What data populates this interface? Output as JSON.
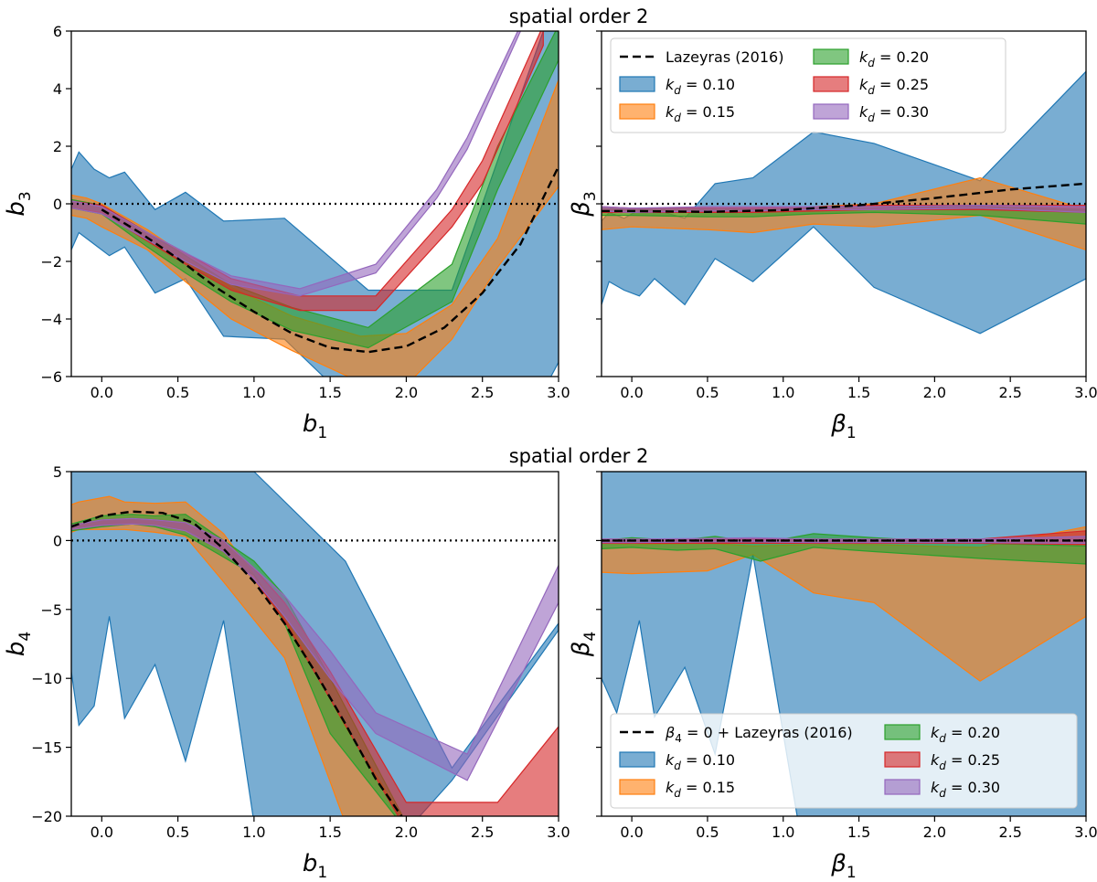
{
  "figure": {
    "top_title": "spatial order 2",
    "bottom_title": "spatial order 2"
  },
  "series_styles": [
    {
      "key": "0.10",
      "color": "#1f77b4",
      "alpha": 0.6,
      "label_pre": "k",
      "label_sub": "d",
      "label_post": " = 0.10"
    },
    {
      "key": "0.15",
      "color": "#ff7f0e",
      "alpha": 0.6,
      "label_pre": "k",
      "label_sub": "d",
      "label_post": " = 0.15"
    },
    {
      "key": "0.20",
      "color": "#2ca02c",
      "alpha": 0.6,
      "label_pre": "k",
      "label_sub": "d",
      "label_post": " = 0.20"
    },
    {
      "key": "0.25",
      "color": "#d62728",
      "alpha": 0.6,
      "label_pre": "k",
      "label_sub": "d",
      "label_post": " = 0.25"
    },
    {
      "key": "0.30",
      "color": "#9467bd",
      "alpha": 0.6,
      "label_pre": "k",
      "label_sub": "d",
      "label_post": " = 0.30"
    }
  ],
  "chart_data": [
    {
      "id": "p1",
      "type": "area",
      "xlabel": {
        "main": "b",
        "sub": "1"
      },
      "ylabel": {
        "main": "b",
        "sub": "3"
      },
      "xlim": [
        -0.2,
        3.0
      ],
      "ylim": [
        -6,
        6
      ],
      "xticks": [
        0.0,
        0.5,
        1.0,
        1.5,
        2.0,
        2.5,
        3.0
      ],
      "xtick_labels": [
        "0.0",
        "0.5",
        "1.0",
        "1.5",
        "2.0",
        "2.5",
        "3.0"
      ],
      "yticks": [
        -6,
        -4,
        -2,
        0,
        2,
        4,
        6
      ],
      "ytick_labels": [
        "−6",
        "−4",
        "−2",
        "0",
        "2",
        "4",
        "6"
      ],
      "show_ytick_labels": true,
      "hline": 0,
      "bands": [
        {
          "key": "0.10",
          "x": [
            -0.2,
            -0.15,
            -0.05,
            0.05,
            0.15,
            0.35,
            0.55,
            0.8,
            1.2,
            1.75,
            2.3,
            2.9,
            3.0
          ],
          "upper": [
            1.2,
            1.8,
            1.2,
            0.9,
            1.1,
            -0.2,
            0.4,
            -0.6,
            -0.5,
            -3.0,
            -3.0,
            6.0,
            6.0
          ],
          "lower": [
            -1.6,
            -1.0,
            -1.4,
            -1.8,
            -1.5,
            -3.1,
            -2.6,
            -4.6,
            -4.7,
            -7.5,
            -6.0,
            -6.5,
            -5.5
          ]
        },
        {
          "key": "0.15",
          "x": [
            -0.2,
            -0.1,
            0.0,
            0.3,
            0.55,
            0.85,
            1.25,
            1.7,
            2.0,
            2.3,
            2.6,
            3.0
          ],
          "upper": [
            0.3,
            0.2,
            0.0,
            -0.9,
            -1.8,
            -2.9,
            -3.9,
            -4.6,
            -4.5,
            -3.5,
            -1.2,
            4.3
          ],
          "lower": [
            -0.4,
            -0.5,
            -0.8,
            -1.6,
            -2.7,
            -4.0,
            -5.1,
            -6.2,
            -6.3,
            -4.7,
            -2.2,
            0.6
          ]
        },
        {
          "key": "0.20",
          "x": [
            -0.2,
            0.0,
            0.3,
            0.55,
            0.85,
            1.25,
            1.75,
            2.3,
            2.6,
            3.0
          ],
          "upper": [
            0.15,
            -0.05,
            -1.0,
            -1.8,
            -2.8,
            -3.6,
            -4.3,
            -2.1,
            2.0,
            6.2
          ],
          "lower": [
            -0.15,
            -0.35,
            -1.5,
            -2.4,
            -3.4,
            -4.4,
            -5.0,
            -3.4,
            0.5,
            5.0
          ]
        },
        {
          "key": "0.25",
          "x": [
            -0.2,
            0.0,
            0.3,
            0.55,
            0.85,
            1.3,
            1.8,
            2.3,
            2.5,
            2.9
          ],
          "upper": [
            0.1,
            -0.05,
            -1.0,
            -1.7,
            -2.6,
            -3.2,
            -3.2,
            -0.2,
            1.5,
            6.2
          ],
          "lower": [
            -0.15,
            -0.3,
            -1.3,
            -2.1,
            -3.0,
            -3.7,
            -3.7,
            -0.8,
            0.7,
            5.5
          ]
        },
        {
          "key": "0.30",
          "x": [
            -0.2,
            0.0,
            0.3,
            0.55,
            0.85,
            1.3,
            1.8,
            2.2,
            2.4,
            2.75
          ],
          "upper": [
            0.1,
            -0.1,
            -1.0,
            -1.7,
            -2.5,
            -2.95,
            -2.1,
            0.5,
            2.3,
            6.2
          ],
          "lower": [
            -0.15,
            -0.35,
            -1.25,
            -2.0,
            -2.8,
            -3.2,
            -2.4,
            0.2,
            1.9,
            6.0
          ]
        }
      ],
      "dashed_line": {
        "name": "Lazeyras (2016)",
        "x": [
          0.0,
          0.25,
          0.5,
          0.75,
          1.0,
          1.25,
          1.5,
          1.75,
          2.0,
          2.25,
          2.5,
          2.75,
          3.0
        ],
        "y": [
          -0.2,
          -1.0,
          -1.9,
          -2.9,
          -3.75,
          -4.5,
          -5.0,
          -5.15,
          -4.95,
          -4.3,
          -3.1,
          -1.4,
          1.3
        ]
      },
      "legend": null
    },
    {
      "id": "p2",
      "type": "area",
      "xlabel": {
        "main": "β",
        "sub": "1"
      },
      "ylabel": {
        "main": "β",
        "sub": "3"
      },
      "xlim": [
        -0.2,
        3.0
      ],
      "ylim": [
        -6,
        6
      ],
      "xticks": [
        0.0,
        0.5,
        1.0,
        1.5,
        2.0,
        2.5,
        3.0
      ],
      "xtick_labels": [
        "0.0",
        "0.5",
        "1.0",
        "1.5",
        "2.0",
        "2.5",
        "3.0"
      ],
      "yticks": [
        -6,
        -4,
        -2,
        0,
        2,
        4,
        6
      ],
      "ytick_labels": [],
      "show_ytick_labels": false,
      "hline": 0,
      "bands": [
        {
          "key": "0.10",
          "x": [
            -0.2,
            -0.15,
            -0.05,
            0.05,
            0.15,
            0.35,
            0.55,
            0.8,
            1.2,
            1.6,
            2.3,
            3.0
          ],
          "upper": [
            -0.6,
            -0.3,
            -0.5,
            -0.2,
            -0.2,
            -0.5,
            0.7,
            0.9,
            2.5,
            2.1,
            0.8,
            4.6
          ],
          "lower": [
            -3.5,
            -2.7,
            -3.0,
            -3.2,
            -2.6,
            -3.5,
            -1.9,
            -2.7,
            -0.8,
            -2.9,
            -4.5,
            -2.6
          ]
        },
        {
          "key": "0.15",
          "x": [
            -0.2,
            0.0,
            0.5,
            0.8,
            1.2,
            1.6,
            2.3,
            3.0
          ],
          "upper": [
            -0.2,
            -0.2,
            -0.1,
            -0.1,
            -0.1,
            0.0,
            0.9,
            -0.2
          ],
          "lower": [
            -0.9,
            -0.8,
            -0.9,
            -1.0,
            -0.7,
            -0.8,
            -0.4,
            -1.6
          ]
        },
        {
          "key": "0.20",
          "x": [
            -0.2,
            0.0,
            0.5,
            0.8,
            1.2,
            1.6,
            2.3,
            3.0
          ],
          "upper": [
            -0.15,
            -0.2,
            -0.15,
            -0.2,
            -0.15,
            -0.1,
            -0.1,
            -0.2
          ],
          "lower": [
            -0.4,
            -0.4,
            -0.45,
            -0.45,
            -0.35,
            -0.3,
            -0.4,
            -0.7
          ]
        },
        {
          "key": "0.25",
          "x": [
            -0.2,
            0.0,
            0.5,
            0.8,
            1.2,
            1.6,
            2.3,
            3.0
          ],
          "upper": [
            -0.1,
            -0.15,
            -0.15,
            -0.15,
            -0.1,
            -0.05,
            -0.05,
            -0.05
          ],
          "lower": [
            -0.3,
            -0.3,
            -0.3,
            -0.3,
            -0.25,
            -0.2,
            -0.2,
            -0.3
          ]
        },
        {
          "key": "0.30",
          "x": [
            -0.2,
            0.0,
            0.5,
            0.8,
            1.2,
            1.6,
            2.3,
            3.0
          ],
          "upper": [
            -0.1,
            -0.15,
            -0.1,
            -0.1,
            -0.1,
            -0.1,
            -0.05,
            -0.1
          ],
          "lower": [
            -0.25,
            -0.3,
            -0.25,
            -0.25,
            -0.2,
            -0.2,
            -0.15,
            -0.3
          ]
        }
      ],
      "dashed_line": {
        "name": "Lazeyras (2016)",
        "x": [
          -0.2,
          0.0,
          0.5,
          1.0,
          1.5,
          2.0,
          2.5,
          3.0
        ],
        "y": [
          -0.25,
          -0.25,
          -0.28,
          -0.22,
          -0.05,
          0.2,
          0.5,
          0.7
        ]
      },
      "legend": {
        "position": "top",
        "line_label": "Lazeyras (2016)",
        "order": [
          "line",
          "0.10",
          "0.15",
          "0.20",
          "0.25",
          "0.30"
        ]
      }
    },
    {
      "id": "p3",
      "type": "area",
      "xlabel": {
        "main": "b",
        "sub": "1"
      },
      "ylabel": {
        "main": "b",
        "sub": "4"
      },
      "xlim": [
        -0.2,
        3.0
      ],
      "ylim": [
        -20,
        5
      ],
      "xticks": [
        0.0,
        0.5,
        1.0,
        1.5,
        2.0,
        2.5,
        3.0
      ],
      "xtick_labels": [
        "0.0",
        "0.5",
        "1.0",
        "1.5",
        "2.0",
        "2.5",
        "3.0"
      ],
      "yticks": [
        -20,
        -15,
        -10,
        -5,
        0,
        5
      ],
      "ytick_labels": [
        "−20",
        "−15",
        "−10",
        "−5",
        "0",
        "5"
      ],
      "show_ytick_labels": true,
      "hline": 0,
      "bands": [
        {
          "key": "0.10",
          "x": [
            -0.2,
            -0.15,
            -0.05,
            0.05,
            0.15,
            0.35,
            0.55,
            0.8,
            1.0,
            1.6,
            2.3,
            3.0
          ],
          "upper": [
            5,
            5,
            5,
            5,
            5,
            5,
            5,
            5,
            5,
            -1.5,
            -16.5,
            -6.0
          ],
          "lower": [
            -9.5,
            -13.4,
            -12.0,
            -5.5,
            -12.9,
            -9.0,
            -16.0,
            -5.8,
            -20.5,
            -26.0,
            -17.4,
            -6.5
          ]
        },
        {
          "key": "0.15",
          "x": [
            -0.2,
            -0.15,
            0.05,
            0.15,
            0.35,
            0.55,
            0.8,
            1.2,
            1.6,
            2.0
          ],
          "upper": [
            2.6,
            2.8,
            3.2,
            2.8,
            2.7,
            2.8,
            0.5,
            -5.5,
            -13.5,
            -20.5
          ],
          "lower": [
            0.6,
            0.8,
            0.8,
            0.8,
            0.6,
            0.3,
            -3.0,
            -8.5,
            -20.5,
            -21.0
          ]
        },
        {
          "key": "0.20",
          "x": [
            -0.2,
            0.0,
            0.2,
            0.35,
            0.55,
            0.8,
            1.0,
            1.2,
            1.5,
            2.0
          ],
          "upper": [
            1.2,
            1.8,
            1.9,
            1.8,
            1.9,
            0.0,
            -1.5,
            -4.0,
            -10.0,
            -20.5
          ],
          "lower": [
            0.7,
            1.0,
            1.2,
            1.0,
            0.4,
            -1.2,
            -2.5,
            -6.0,
            -14.0,
            -21.0
          ]
        },
        {
          "key": "0.25",
          "x": [
            -0.2,
            0.0,
            0.2,
            0.35,
            0.55,
            0.8,
            1.0,
            1.2,
            1.5,
            2.0,
            2.6,
            3.0
          ],
          "upper": [
            1.1,
            1.5,
            1.6,
            1.5,
            1.3,
            0.0,
            -2.0,
            -4.5,
            -9.5,
            -19.0,
            -19.0,
            -13.5
          ],
          "lower": [
            0.8,
            1.1,
            1.2,
            1.1,
            0.7,
            -0.8,
            -2.8,
            -5.8,
            -11.5,
            -21.0,
            -21.0,
            -20.5
          ]
        },
        {
          "key": "0.30",
          "x": [
            -0.2,
            0.0,
            0.2,
            0.35,
            0.55,
            0.8,
            1.0,
            1.2,
            1.5,
            1.8,
            2.4,
            3.0
          ],
          "upper": [
            1.1,
            1.5,
            1.6,
            1.5,
            1.3,
            0.0,
            -2.0,
            -4.0,
            -8.0,
            -12.5,
            -15.5,
            -1.8
          ],
          "lower": [
            0.8,
            1.1,
            1.2,
            1.1,
            0.7,
            -0.8,
            -2.8,
            -5.5,
            -10.0,
            -14.0,
            -17.4,
            -4.5
          ]
        }
      ],
      "dashed_line": {
        "name": "Lazeyras (2016)",
        "x": [
          -0.2,
          0.0,
          0.2,
          0.4,
          0.6,
          0.8,
          1.0,
          1.2,
          1.4,
          1.6,
          1.8,
          2.0
        ],
        "y": [
          1.0,
          1.8,
          2.1,
          2.0,
          1.3,
          -0.6,
          -3.0,
          -6.0,
          -9.5,
          -13.3,
          -17.3,
          -20.5
        ]
      },
      "legend": null
    },
    {
      "id": "p4",
      "type": "area",
      "xlabel": {
        "main": "β",
        "sub": "1"
      },
      "ylabel": {
        "main": "β",
        "sub": "4"
      },
      "xlim": [
        -0.2,
        3.0
      ],
      "ylim": [
        -20,
        5
      ],
      "xticks": [
        0.0,
        0.5,
        1.0,
        1.5,
        2.0,
        2.5,
        3.0
      ],
      "xtick_labels": [
        "0.0",
        "0.5",
        "1.0",
        "1.5",
        "2.0",
        "2.5",
        "3.0"
      ],
      "yticks": [
        -20,
        -15,
        -10,
        -5,
        0,
        5
      ],
      "ytick_labels": [],
      "show_ytick_labels": false,
      "hline": 0,
      "bands": [
        {
          "key": "0.10",
          "x": [
            -0.2,
            -0.1,
            0.05,
            0.15,
            0.35,
            0.55,
            0.8,
            1.1,
            1.6,
            2.3,
            3.0
          ],
          "upper": [
            5,
            5,
            5,
            5,
            5,
            5,
            5,
            5,
            5,
            5,
            5
          ],
          "lower": [
            -10.0,
            -12.5,
            -5.8,
            -12.8,
            -9.2,
            -15.5,
            -1.0,
            -20.5,
            -21.0,
            -21.0,
            -21.0
          ]
        },
        {
          "key": "0.15",
          "x": [
            -0.2,
            0.0,
            0.5,
            0.8,
            1.2,
            1.6,
            2.3,
            3.0
          ],
          "upper": [
            -0.2,
            -0.3,
            -0.2,
            -0.4,
            -0.3,
            -0.3,
            -0.5,
            1.0
          ],
          "lower": [
            -2.3,
            -2.4,
            -2.2,
            -1.0,
            -3.8,
            -4.5,
            -10.2,
            -5.5
          ]
        },
        {
          "key": "0.20",
          "x": [
            -0.2,
            0.0,
            0.3,
            0.55,
            0.85,
            1.2,
            1.6,
            2.3,
            3.0
          ],
          "upper": [
            0.0,
            0.2,
            0.0,
            0.3,
            -0.2,
            0.5,
            0.2,
            -0.2,
            -0.4
          ],
          "lower": [
            -0.6,
            -0.5,
            -0.7,
            -0.6,
            -1.5,
            -0.5,
            -0.8,
            -1.3,
            -1.7
          ]
        },
        {
          "key": "0.25",
          "x": [
            -0.2,
            0.0,
            0.5,
            0.8,
            1.2,
            1.6,
            2.3,
            3.0
          ],
          "upper": [
            0.1,
            0.1,
            0.1,
            0.1,
            0.1,
            0.1,
            0.1,
            0.7
          ],
          "lower": [
            -0.2,
            -0.2,
            -0.2,
            -0.2,
            -0.2,
            -0.2,
            -0.2,
            -0.3
          ]
        },
        {
          "key": "0.30",
          "x": [
            -0.2,
            0.0,
            0.5,
            0.8,
            1.2,
            1.6,
            2.3,
            3.0
          ],
          "upper": [
            0.1,
            0.1,
            0.15,
            0.2,
            0.1,
            0.1,
            0.1,
            0.3
          ],
          "lower": [
            -0.15,
            -0.15,
            -0.1,
            -0.1,
            -0.15,
            -0.15,
            -0.15,
            -0.2
          ]
        }
      ],
      "dashed_line": {
        "name": "β4 = 0 + Lazeyras (2016)",
        "x": [
          -0.2,
          0.5,
          1.0,
          1.5,
          2.0,
          2.5,
          3.0
        ],
        "y": [
          0.0,
          0.0,
          0.0,
          0.0,
          0.0,
          0.0,
          0.0
        ]
      },
      "legend": {
        "position": "bottom",
        "line_label": "β4 = 0 + Lazeyras (2016)",
        "order": [
          "line",
          "0.10",
          "0.15",
          "0.20",
          "0.25",
          "0.30"
        ]
      }
    }
  ]
}
